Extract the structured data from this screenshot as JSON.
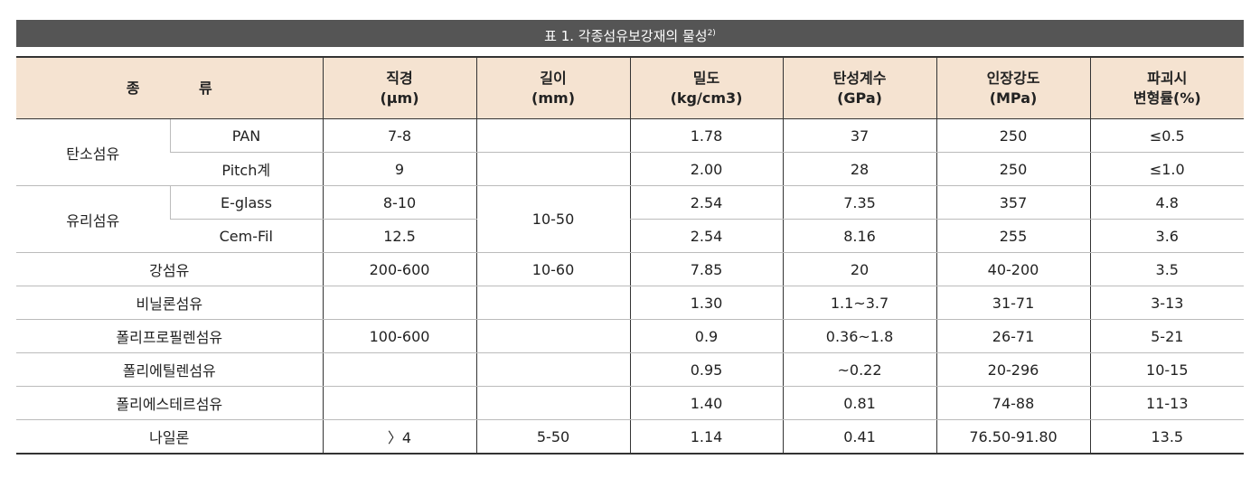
{
  "title": {
    "text": "표 1. 각종섬유보강재의 물성",
    "note": "2)"
  },
  "table": {
    "header": [
      {
        "lines": [
          "종 류"
        ]
      },
      {
        "lines": [
          "직경",
          "(μm)"
        ]
      },
      {
        "lines": [
          "길이",
          "(mm)"
        ]
      },
      {
        "lines": [
          "밀도",
          "(kg/cm3)"
        ]
      },
      {
        "lines": [
          "탄성계수",
          "(GPa)"
        ]
      },
      {
        "lines": [
          "인장강도",
          "(MPa)"
        ]
      },
      {
        "lines": [
          "파괴시",
          "변형률(%)"
        ]
      }
    ],
    "rows": [
      [
        "탄소섬유",
        "PAN",
        "7-8",
        "1.78",
        "37",
        "250",
        "≤0.5"
      ],
      [
        "Pitch계",
        "9",
        "2.00",
        "28",
        "250",
        "≤1.0"
      ],
      [
        "유리섬유",
        "E-glass",
        "8-10",
        "10-50",
        "2.54",
        "7.35",
        "357",
        "4.8"
      ],
      [
        "Cem-Fil",
        "12.5",
        "2.54",
        "8.16",
        "255",
        "3.6"
      ],
      [
        "강섬유",
        "200-600",
        "10-60",
        "7.85",
        "20",
        "40-200",
        "3.5"
      ],
      [
        "비닐론섬유",
        "1.30",
        "1.1~3.7",
        "31-71",
        "3-13"
      ],
      [
        "폴리프로필렌섬유",
        "100-600",
        "0.9",
        "0.36~1.8",
        "26-71",
        "5-21"
      ],
      [
        "폴리에틸렌섬유",
        "0.95",
        "~0.22",
        "20-296",
        "10-15"
      ],
      [
        "폴리에스테르섬유",
        "1.40",
        "0.81",
        "74-88",
        "11-13"
      ],
      [
        "나일론",
        "〉4",
        "5-50",
        "1.14",
        "0.41",
        "76.50-91.80",
        "13.5"
      ]
    ]
  }
}
